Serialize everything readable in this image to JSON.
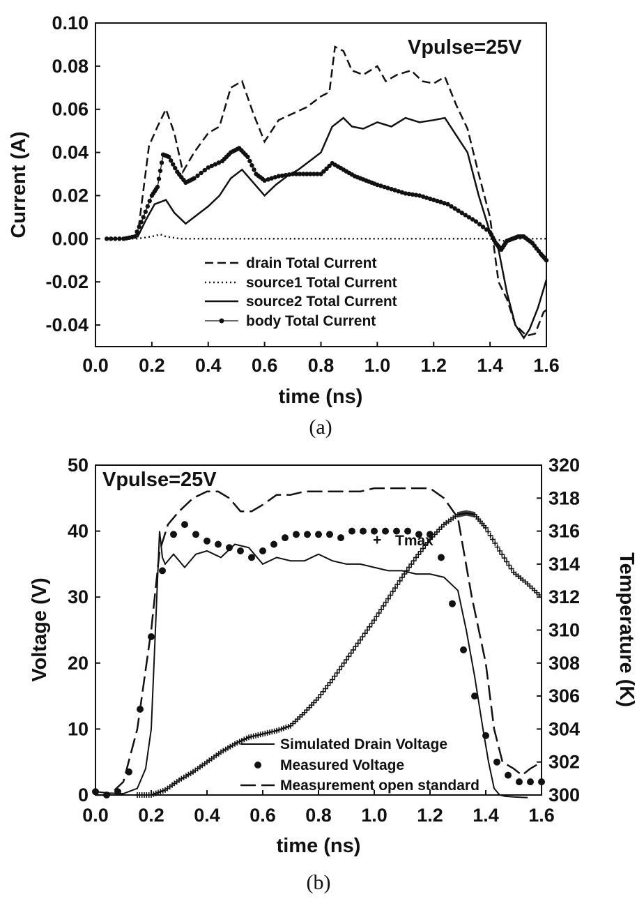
{
  "chart_data": [
    {
      "id": "a",
      "type": "line",
      "caption": "(a)",
      "annotation": "Vpulse=25V",
      "xlabel": "time (ns)",
      "ylabel": "Current (A)",
      "xlim": [
        0.0,
        1.6
      ],
      "ylim": [
        -0.05,
        0.1
      ],
      "xticks": [
        "0.0",
        "0.2",
        "0.4",
        "0.6",
        "0.8",
        "1.0",
        "1.2",
        "1.4",
        "1.6"
      ],
      "yticks": [
        "0.10",
        "0.08",
        "0.06",
        "0.04",
        "0.02",
        "0.00",
        "-0.02",
        "-0.04"
      ],
      "legend_position": "bottom-center",
      "series": [
        {
          "name": "drain Total Current",
          "style": "dashed",
          "x": [
            0.04,
            0.1,
            0.15,
            0.19,
            0.22,
            0.25,
            0.28,
            0.31,
            0.35,
            0.4,
            0.44,
            0.48,
            0.52,
            0.56,
            0.6,
            0.65,
            0.7,
            0.75,
            0.8,
            0.83,
            0.85,
            0.88,
            0.91,
            0.95,
            1.0,
            1.03,
            1.07,
            1.12,
            1.16,
            1.2,
            1.24,
            1.28,
            1.32,
            1.36,
            1.4,
            1.43,
            1.46,
            1.49,
            1.53,
            1.56,
            1.59,
            1.6
          ],
          "y": [
            0.0,
            0.0,
            0.002,
            0.043,
            0.052,
            0.06,
            0.049,
            0.031,
            0.04,
            0.049,
            0.052,
            0.07,
            0.073,
            0.058,
            0.045,
            0.055,
            0.058,
            0.061,
            0.066,
            0.068,
            0.089,
            0.087,
            0.078,
            0.076,
            0.08,
            0.073,
            0.076,
            0.078,
            0.073,
            0.072,
            0.075,
            0.062,
            0.051,
            0.03,
            0.01,
            -0.02,
            -0.028,
            -0.04,
            -0.045,
            -0.044,
            -0.034,
            -0.033
          ]
        },
        {
          "name": "source1 Total Current",
          "style": "dotted",
          "x": [
            0.04,
            0.1,
            0.15,
            0.2,
            0.23,
            0.25,
            0.3,
            0.4,
            0.6,
            0.8,
            1.0,
            1.2,
            1.4,
            1.45,
            1.5,
            1.55,
            1.6
          ],
          "y": [
            0.0,
            0.0,
            0.0,
            0.001,
            0.002,
            0.001,
            0.0,
            0.0,
            0.0,
            0.0,
            0.0,
            0.0,
            0.0,
            -0.001,
            0.0,
            0.0,
            0.0
          ]
        },
        {
          "name": "source2 Total Current",
          "style": "solid",
          "x": [
            0.04,
            0.1,
            0.15,
            0.18,
            0.21,
            0.25,
            0.28,
            0.32,
            0.36,
            0.4,
            0.44,
            0.48,
            0.52,
            0.56,
            0.6,
            0.64,
            0.68,
            0.72,
            0.76,
            0.8,
            0.84,
            0.88,
            0.91,
            0.95,
            1.0,
            1.05,
            1.1,
            1.15,
            1.2,
            1.24,
            1.28,
            1.32,
            1.36,
            1.4,
            1.43,
            1.46,
            1.49,
            1.52,
            1.54,
            1.57,
            1.6
          ],
          "y": [
            0.0,
            0.0,
            0.001,
            0.009,
            0.016,
            0.018,
            0.012,
            0.007,
            0.011,
            0.015,
            0.02,
            0.028,
            0.032,
            0.026,
            0.02,
            0.025,
            0.029,
            0.032,
            0.036,
            0.04,
            0.052,
            0.056,
            0.052,
            0.051,
            0.054,
            0.052,
            0.056,
            0.054,
            0.055,
            0.056,
            0.048,
            0.04,
            0.02,
            0.003,
            -0.005,
            -0.025,
            -0.04,
            -0.046,
            -0.042,
            -0.032,
            -0.019
          ]
        },
        {
          "name": "body Total Current",
          "style": "solid-dot-markers",
          "x": [
            0.04,
            0.1,
            0.14,
            0.17,
            0.2,
            0.22,
            0.24,
            0.26,
            0.29,
            0.32,
            0.35,
            0.4,
            0.45,
            0.48,
            0.51,
            0.54,
            0.57,
            0.6,
            0.65,
            0.7,
            0.75,
            0.8,
            0.84,
            0.88,
            0.92,
            0.96,
            1.0,
            1.05,
            1.1,
            1.15,
            1.2,
            1.25,
            1.3,
            1.35,
            1.4,
            1.42,
            1.44,
            1.46,
            1.48,
            1.5,
            1.52,
            1.55,
            1.58,
            1.6
          ],
          "y": [
            0.0,
            0.0,
            0.001,
            0.01,
            0.02,
            0.024,
            0.039,
            0.038,
            0.031,
            0.026,
            0.028,
            0.033,
            0.036,
            0.04,
            0.042,
            0.038,
            0.03,
            0.027,
            0.029,
            0.03,
            0.03,
            0.03,
            0.035,
            0.032,
            0.029,
            0.027,
            0.025,
            0.023,
            0.021,
            0.02,
            0.018,
            0.016,
            0.012,
            0.008,
            0.003,
            -0.002,
            -0.005,
            -0.001,
            0.0,
            0.001,
            0.001,
            -0.002,
            -0.007,
            -0.01
          ]
        }
      ]
    },
    {
      "id": "b",
      "type": "line",
      "caption": "(b)",
      "annotation": "Vpulse=25V",
      "xlabel": "time (ns)",
      "ylabel": "Voltage (V)",
      "y2label": "Temperature (K)",
      "xlim": [
        0.0,
        1.6
      ],
      "ylim": [
        0,
        50
      ],
      "y2lim": [
        300,
        320
      ],
      "xticks": [
        "0.0",
        "0.2",
        "0.4",
        "0.6",
        "0.8",
        "1.0",
        "1.2",
        "1.4",
        "1.6"
      ],
      "yticks": [
        "50",
        "40",
        "30",
        "20",
        "10",
        "0"
      ],
      "y2ticks": [
        "320",
        "318",
        "316",
        "314",
        "312",
        "310",
        "308",
        "306",
        "304",
        "302",
        "300"
      ],
      "legend_position": "bottom-right",
      "tmax_label": "Tmax",
      "series": [
        {
          "name": "Simulated Drain Voltage",
          "style": "solid",
          "axis": "left",
          "x": [
            0.0,
            0.05,
            0.1,
            0.15,
            0.18,
            0.2,
            0.22,
            0.23,
            0.24,
            0.25,
            0.28,
            0.32,
            0.36,
            0.4,
            0.45,
            0.5,
            0.55,
            0.6,
            0.65,
            0.7,
            0.75,
            0.8,
            0.85,
            0.9,
            0.95,
            1.0,
            1.05,
            1.1,
            1.15,
            1.2,
            1.25,
            1.3,
            1.33,
            1.36,
            1.39,
            1.41,
            1.43,
            1.45,
            1.47,
            1.5,
            1.55
          ],
          "y": [
            0.5,
            0.3,
            0.2,
            1.0,
            4.0,
            10.0,
            30.0,
            40.0,
            36.0,
            35.0,
            36.5,
            34.5,
            36.5,
            37.0,
            36.0,
            38.0,
            37.5,
            35.0,
            36.0,
            35.5,
            35.5,
            36.5,
            35.5,
            35.0,
            35.0,
            34.5,
            34.0,
            34.0,
            33.5,
            33.5,
            33.0,
            31.0,
            25.0,
            18.0,
            10.0,
            5.0,
            1.0,
            0.0,
            -0.2,
            -0.3,
            -0.4
          ]
        },
        {
          "name": "Measured Voltage",
          "style": "dots",
          "axis": "left",
          "x": [
            0.0,
            0.04,
            0.08,
            0.12,
            0.16,
            0.2,
            0.24,
            0.28,
            0.32,
            0.36,
            0.4,
            0.44,
            0.48,
            0.52,
            0.56,
            0.6,
            0.64,
            0.68,
            0.72,
            0.76,
            0.8,
            0.84,
            0.88,
            0.92,
            0.96,
            1.0,
            1.04,
            1.08,
            1.12,
            1.16,
            1.2,
            1.24,
            1.28,
            1.32,
            1.36,
            1.4,
            1.44,
            1.48,
            1.52,
            1.56,
            1.6
          ],
          "y": [
            0.5,
            0.0,
            0.5,
            3.5,
            13.0,
            24.0,
            34.0,
            39.5,
            41.0,
            39.5,
            38.5,
            38.0,
            37.5,
            37.0,
            36.0,
            37.0,
            38.0,
            39.0,
            39.5,
            39.5,
            39.5,
            39.5,
            39.0,
            40.0,
            40.0,
            40.0,
            40.0,
            40.0,
            40.0,
            39.5,
            39.5,
            36.0,
            29.0,
            22.0,
            15.0,
            9.0,
            5.0,
            3.0,
            2.0,
            2.0,
            2.0
          ]
        },
        {
          "name": "Measurement open standard",
          "style": "long-dashed",
          "axis": "left",
          "x": [
            0.0,
            0.05,
            0.1,
            0.15,
            0.2,
            0.23,
            0.26,
            0.3,
            0.35,
            0.4,
            0.44,
            0.48,
            0.52,
            0.56,
            0.6,
            0.65,
            0.7,
            0.75,
            0.8,
            0.85,
            0.9,
            0.95,
            1.0,
            1.05,
            1.1,
            1.15,
            1.2,
            1.25,
            1.3,
            1.35,
            1.4,
            1.43,
            1.46,
            1.5,
            1.53,
            1.56,
            1.6
          ],
          "y": [
            0.0,
            0.0,
            2.0,
            10.0,
            25.0,
            37.0,
            41.0,
            43.0,
            45.0,
            46.0,
            46.0,
            45.0,
            43.0,
            43.0,
            44.0,
            45.5,
            45.5,
            46.0,
            46.0,
            46.0,
            46.0,
            46.0,
            46.5,
            46.5,
            46.5,
            46.5,
            46.5,
            45.0,
            42.0,
            30.0,
            20.0,
            10.0,
            5.0,
            4.0,
            3.0,
            4.0,
            5.0
          ]
        },
        {
          "name": "Tmax",
          "style": "plus",
          "axis": "right",
          "x": [
            0.15,
            0.2,
            0.25,
            0.3,
            0.35,
            0.4,
            0.45,
            0.5,
            0.55,
            0.6,
            0.65,
            0.7,
            0.75,
            0.8,
            0.85,
            0.9,
            0.95,
            1.0,
            1.05,
            1.1,
            1.15,
            1.2,
            1.25,
            1.3,
            1.33,
            1.36,
            1.4,
            1.45,
            1.5,
            1.55,
            1.6
          ],
          "y": [
            300.0,
            300.0,
            300.3,
            300.9,
            301.4,
            302.0,
            302.6,
            303.1,
            303.5,
            303.7,
            303.9,
            304.2,
            305.0,
            305.9,
            307.0,
            308.2,
            309.4,
            310.6,
            311.9,
            313.2,
            314.4,
            315.5,
            316.4,
            317.0,
            317.1,
            317.0,
            316.2,
            314.8,
            313.5,
            312.8,
            312.0
          ]
        }
      ]
    }
  ]
}
